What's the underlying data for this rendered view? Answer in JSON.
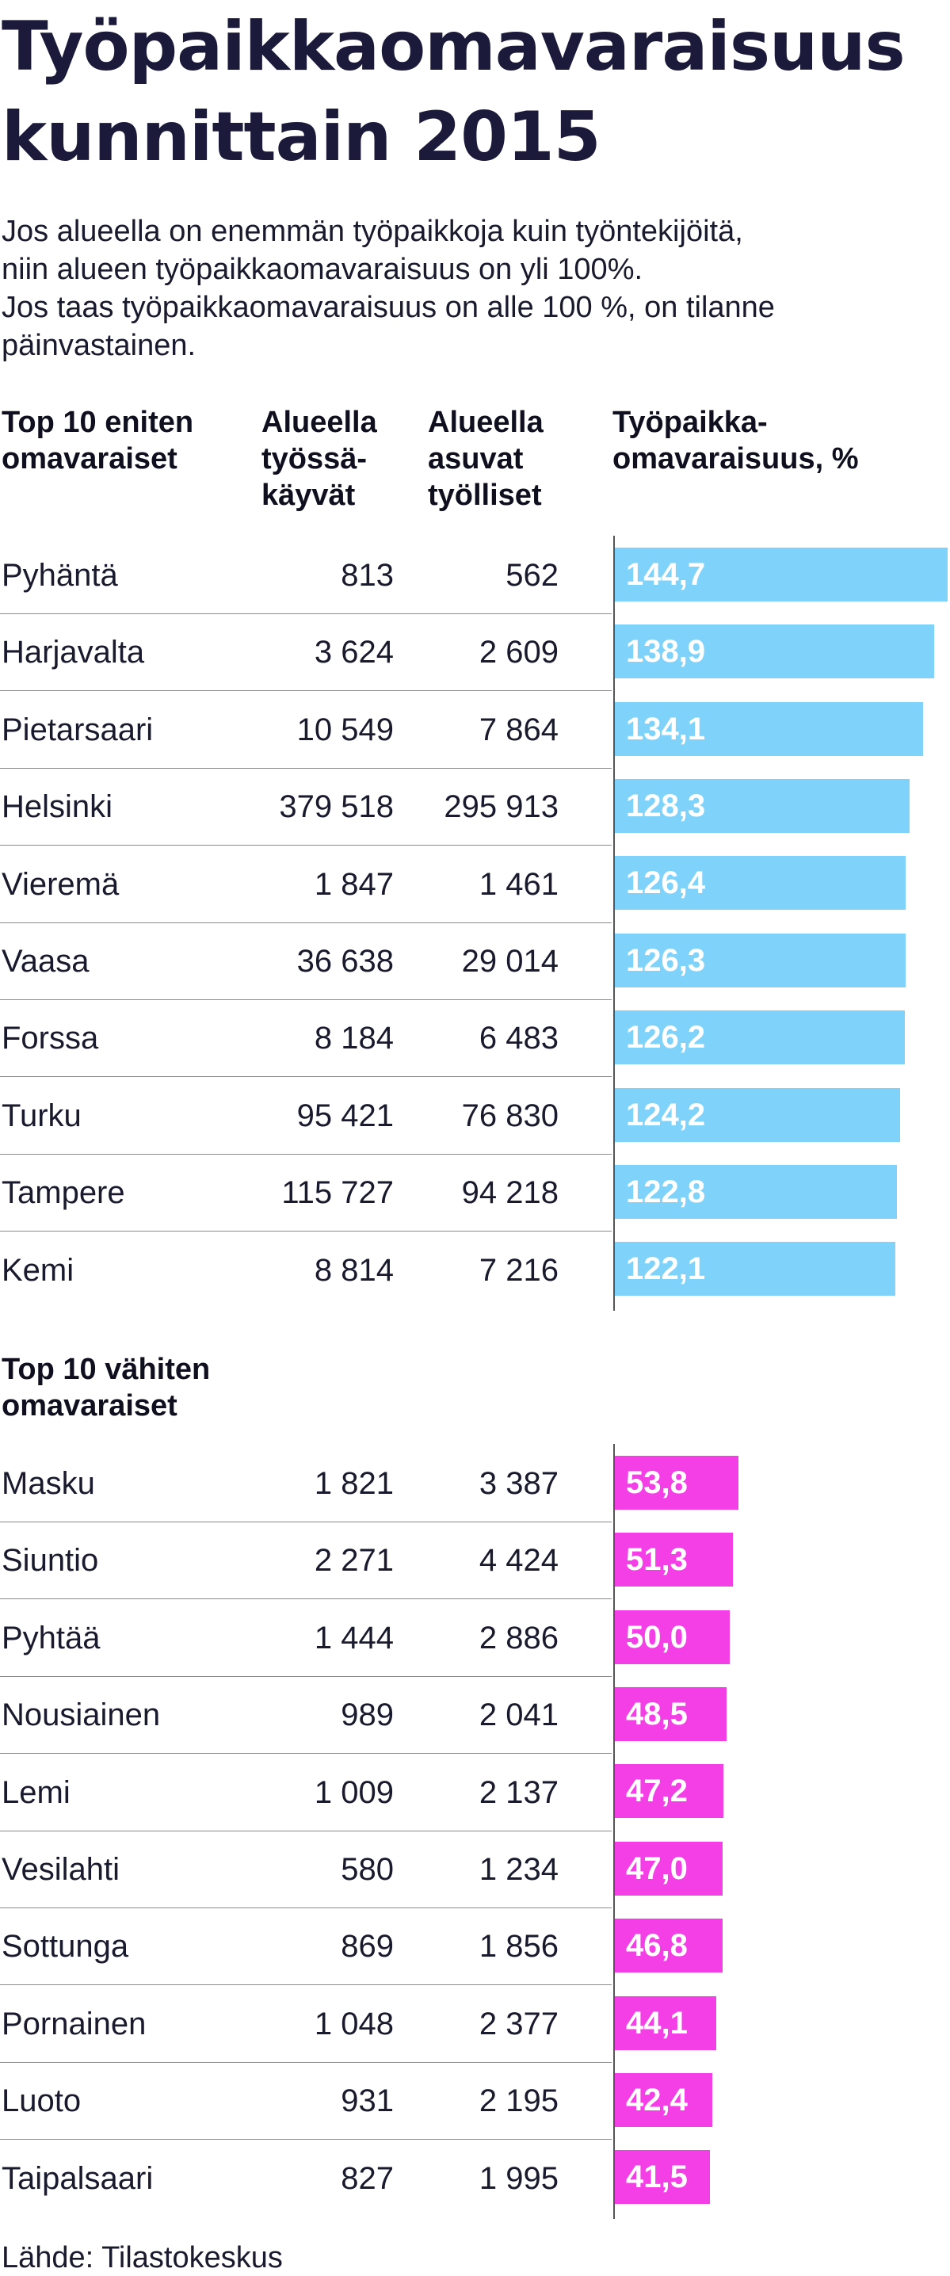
{
  "title": "Työpaikkaomavaraisuus kunnittain 2015",
  "intro": [
    "Jos alueella on enemmän työpaikkoja kuin työntekijöitä,",
    "niin alueen työpaikkaomavaraisuus on yli 100%.",
    "Jos taas työpaikkaomavaraisuus on alle 100 %, on tilanne",
    "päinvastainen."
  ],
  "headers": {
    "top_group": "Top 10 eniten omavaraiset",
    "col1": "Alueella työssä-käyvät",
    "col2": "Alueella asuvat työlliset",
    "col3": "Työpaikka-omavaraisuus, %"
  },
  "bottom_group": "Top 10 vähiten omavaraiset",
  "source": "Lähde: Tilastokeskus",
  "colors": {
    "top_bar": "#7fd3fb",
    "bottom_bar": "#f53fe6"
  },
  "chart_data": [
    {
      "type": "bar",
      "orientation": "horizontal",
      "title": "Top 10 eniten omavaraiset",
      "value_label": "Työpaikkaomavaraisuus, %",
      "xlim": [
        0,
        144.7
      ],
      "rows": [
        {
          "name": "Pyhäntä",
          "v1": "813",
          "v2": "562",
          "pct": 144.7,
          "label": "144,7"
        },
        {
          "name": "Harjavalta",
          "v1": "3 624",
          "v2": "2 609",
          "pct": 138.9,
          "label": "138,9"
        },
        {
          "name": "Pietarsaari",
          "v1": "10 549",
          "v2": "7 864",
          "pct": 134.1,
          "label": "134,1"
        },
        {
          "name": "Helsinki",
          "v1": "379 518",
          "v2": "295 913",
          "pct": 128.3,
          "label": "128,3"
        },
        {
          "name": "Vieremä",
          "v1": "1 847",
          "v2": "1 461",
          "pct": 126.4,
          "label": "126,4"
        },
        {
          "name": "Vaasa",
          "v1": "36 638",
          "v2": "29 014",
          "pct": 126.3,
          "label": "126,3"
        },
        {
          "name": "Forssa",
          "v1": "8 184",
          "v2": "6 483",
          "pct": 126.2,
          "label": "126,2"
        },
        {
          "name": "Turku",
          "v1": "95 421",
          "v2": "76 830",
          "pct": 124.2,
          "label": "124,2"
        },
        {
          "name": "Tampere",
          "v1": "115 727",
          "v2": "94 218",
          "pct": 122.8,
          "label": "122,8"
        },
        {
          "name": "Kemi",
          "v1": "8 814",
          "v2": "7 216",
          "pct": 122.1,
          "label": "122,1"
        }
      ]
    },
    {
      "type": "bar",
      "orientation": "horizontal",
      "title": "Top 10 vähiten omavaraiset",
      "value_label": "Työpaikkaomavaraisuus, %",
      "xlim": [
        0,
        144.7
      ],
      "rows": [
        {
          "name": "Masku",
          "v1": "1 821",
          "v2": "3 387",
          "pct": 53.8,
          "label": "53,8"
        },
        {
          "name": "Siuntio",
          "v1": "2 271",
          "v2": "4 424",
          "pct": 51.3,
          "label": "51,3"
        },
        {
          "name": "Pyhtää",
          "v1": "1 444",
          "v2": "2 886",
          "pct": 50.0,
          "label": "50,0"
        },
        {
          "name": "Nousiainen",
          "v1": "989",
          "v2": "2 041",
          "pct": 48.5,
          "label": "48,5"
        },
        {
          "name": "Lemi",
          "v1": "1 009",
          "v2": "2 137",
          "pct": 47.2,
          "label": "47,2"
        },
        {
          "name": "Vesilahti",
          "v1": "580",
          "v2": "1 234",
          "pct": 47.0,
          "label": "47,0"
        },
        {
          "name": "Sottunga",
          "v1": "869",
          "v2": "1 856",
          "pct": 46.8,
          "label": "46,8"
        },
        {
          "name": "Pornainen",
          "v1": "1 048",
          "v2": "2 377",
          "pct": 44.1,
          "label": "44,1"
        },
        {
          "name": "Luoto",
          "v1": "931",
          "v2": "2 195",
          "pct": 42.4,
          "label": "42,4"
        },
        {
          "name": "Taipalsaari",
          "v1": "827",
          "v2": "1 995",
          "pct": 41.5,
          "label": "41,5"
        }
      ]
    }
  ]
}
